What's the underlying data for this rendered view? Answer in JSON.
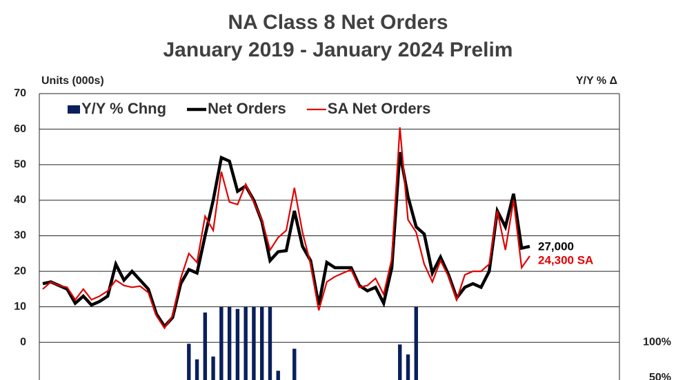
{
  "chart_data": {
    "type": "line",
    "title": "NA Class 8 Net Orders",
    "subtitle": "January 2019 - January 2024 Prelim",
    "y_label": "Units (000s)",
    "y2_label": "Y/Y % Δ",
    "categories": [
      null,
      null,
      null,
      null,
      null,
      null,
      null,
      null,
      null,
      null,
      null,
      null,
      null,
      null,
      null,
      null,
      null,
      null,
      null,
      null,
      null,
      null,
      null,
      null,
      null,
      null,
      null,
      null,
      null,
      null,
      null,
      null,
      null,
      null,
      null,
      null,
      null,
      null,
      null,
      null,
      null,
      null,
      null,
      null,
      null,
      null,
      null,
      null,
      null,
      null,
      null,
      null,
      null,
      null,
      null,
      null,
      null,
      null,
      null,
      null,
      null
    ],
    "series": [
      {
        "name": "Y/Y % Chng",
        "type": "bar",
        "axis": "y2",
        "color": "#0a1f5c",
        "values": [
          null,
          null,
          null,
          null,
          null,
          null,
          null,
          null,
          null,
          null,
          null,
          null,
          null,
          null,
          null,
          null,
          null,
          null,
          98,
          76,
          142,
          80,
          150,
          150,
          147,
          150,
          150,
          150,
          150,
          60,
          null,
          91,
          null,
          null,
          null,
          null,
          null,
          null,
          null,
          null,
          null,
          null,
          null,
          null,
          97,
          83,
          150,
          null,
          null,
          null,
          null,
          null,
          null,
          null,
          null,
          null,
          null,
          null,
          null,
          null,
          null
        ]
      },
      {
        "name": "Net Orders",
        "type": "line",
        "color": "#000000",
        "width": 4.5,
        "values": [
          16.5,
          17,
          16,
          15,
          11,
          13,
          10.5,
          11.5,
          13,
          22,
          17.5,
          20,
          17.5,
          15,
          8,
          4.5,
          7,
          16.5,
          20.5,
          19.5,
          30,
          40,
          52,
          51,
          42.5,
          44,
          40,
          34,
          23,
          25.5,
          25.8,
          37,
          27,
          23,
          10.5,
          22.5,
          21,
          21,
          21,
          16,
          14.5,
          15.5,
          11,
          21,
          53.5,
          41,
          32.5,
          30.5,
          19.5,
          24,
          19,
          12.5,
          15.5,
          16.5,
          15.5,
          20,
          37,
          32.5,
          41.8,
          26.5,
          27
        ]
      },
      {
        "name": "SA Net Orders",
        "type": "line",
        "color": "#e00000",
        "width": 2.2,
        "values": [
          15,
          17,
          16,
          15.5,
          12,
          15,
          12,
          13,
          14.5,
          17.5,
          16,
          15.5,
          15.8,
          14,
          7.5,
          4,
          7.5,
          18,
          25,
          22.5,
          35.5,
          31.5,
          48,
          39.5,
          38.8,
          44.5,
          39.5,
          34.5,
          26,
          29.5,
          31.5,
          43.5,
          31,
          22,
          9,
          17,
          18.5,
          19.5,
          20.5,
          15.5,
          16,
          18,
          13.5,
          23.5,
          60.5,
          34.5,
          31,
          22,
          17,
          23,
          18.5,
          12,
          19,
          20,
          20,
          22,
          37,
          26,
          40,
          21,
          24.3
        ]
      }
    ],
    "annotations": [
      {
        "text": "27,000",
        "color": "#000000"
      },
      {
        "text": "24,300 SA",
        "color": "#e00000"
      }
    ],
    "ylim": [
      -10.6,
      70
    ],
    "yticks": [
      0,
      10,
      20,
      30,
      40,
      50,
      60,
      70
    ],
    "y2lim": [
      47,
      450
    ],
    "y2ticks": [
      {
        "value": 100,
        "label": "100%"
      },
      {
        "value": 50,
        "label": "50%"
      }
    ],
    "grid": true
  }
}
